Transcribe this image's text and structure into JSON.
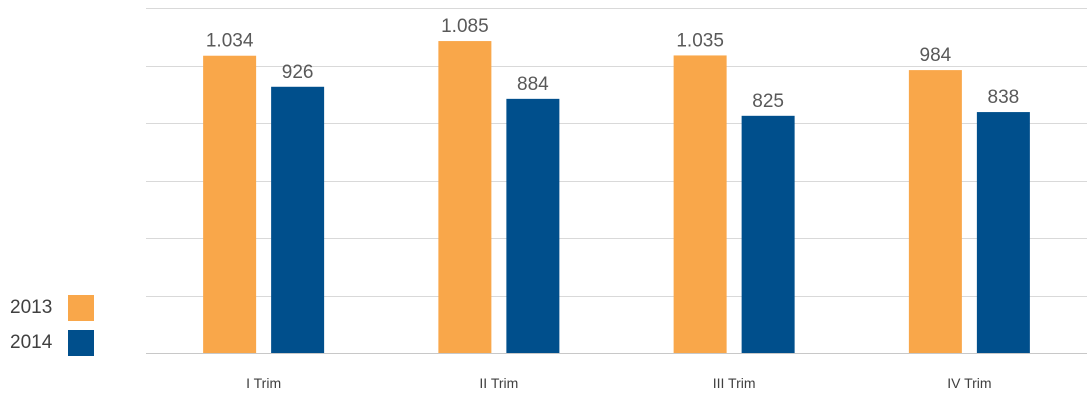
{
  "chart_data": {
    "type": "bar",
    "categories": [
      "I Trim",
      "II Trim",
      "III Trim",
      "IV Trim"
    ],
    "series": [
      {
        "name": "2013",
        "color": "#f9a74a",
        "values": [
          1034,
          1085,
          1035,
          984
        ],
        "labels": [
          "1.034",
          "1.085",
          "1.035",
          "984"
        ]
      },
      {
        "name": "2014",
        "color": "#004f8c",
        "values": [
          926,
          884,
          825,
          838
        ],
        "labels": [
          "926",
          "884",
          "825",
          "838"
        ]
      }
    ],
    "ylim": [
      0,
      1200
    ],
    "grid": true,
    "legend": "bottom-left",
    "title": "",
    "xlabel": "",
    "ylabel": ""
  }
}
